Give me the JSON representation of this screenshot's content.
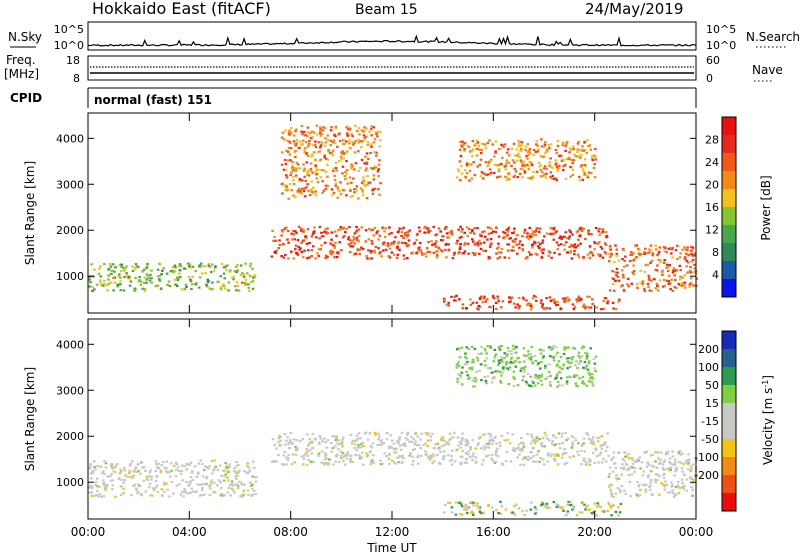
{
  "header": {
    "site": "Hokkaido East (fitACF)",
    "beam": "Beam 15",
    "date": "24/May/2019"
  },
  "top_panels": {
    "nsky_label": "N.Sky",
    "nsky_ticks": [
      "10^5",
      "10^0"
    ],
    "nsearch_label": "N.Search",
    "nsearch_ticks": [
      "10^5",
      "10^0"
    ],
    "freq_label_1": "Freq.",
    "freq_label_2": "[MHz]",
    "freq_ticks": [
      "18",
      "8"
    ],
    "nave_label": "Nave",
    "nave_ticks": [
      "60",
      "0"
    ],
    "cpid_label": "CPID",
    "cpid_value": "normal (fast) 151"
  },
  "colors": {
    "power_scale": [
      "#0a16e8",
      "#1a5aa8",
      "#2e8a5a",
      "#49a64a",
      "#86c52e",
      "#f0c21c",
      "#f28a18",
      "#f0581c",
      "#e62a1e",
      "#e8100e"
    ],
    "velocity_scale": [
      "#e80c0c",
      "#f05014",
      "#f38a16",
      "#f2c416",
      "#c8c8c4",
      "#c8c8c4",
      "#7ed040",
      "#2e9a52",
      "#255f8e",
      "#1a28b8"
    ]
  },
  "chart_data": [
    {
      "type": "heatmap",
      "name": "power",
      "ylabel": "Slant Range [km]",
      "yticks": [
        "1000",
        "2000",
        "3000",
        "4000"
      ],
      "ylim": [
        200,
        4550
      ],
      "xlim": [
        0,
        24
      ],
      "colorbar_label": "Power [dB]",
      "colorbar_ticks": [
        "4",
        "8",
        "12",
        "16",
        "20",
        "24",
        "28"
      ],
      "colorbar_range": [
        0,
        32
      ],
      "bands": [
        {
          "t0": 0.0,
          "t1": 6.6,
          "r0": 700,
          "r1": 1300,
          "level": 14
        },
        {
          "t0": 7.2,
          "t1": 20.5,
          "r0": 1400,
          "r1": 2100,
          "level": 26
        },
        {
          "t0": 20.5,
          "t1": 24.0,
          "r0": 700,
          "r1": 1700,
          "level": 24
        },
        {
          "t0": 7.6,
          "t1": 11.5,
          "r0": 2700,
          "r1": 4300,
          "level": 22
        },
        {
          "t0": 14.5,
          "t1": 20.0,
          "r0": 3100,
          "r1": 4000,
          "level": 22
        },
        {
          "t0": 14.0,
          "t1": 21.0,
          "r0": 300,
          "r1": 600,
          "level": 26
        }
      ]
    },
    {
      "type": "heatmap",
      "name": "velocity",
      "ylabel": "Slant Range [km]",
      "xlabel": "Time UT",
      "xticks": [
        "00:00",
        "04:00",
        "08:00",
        "12:00",
        "16:00",
        "20:00",
        "00:00"
      ],
      "yticks": [
        "1000",
        "2000",
        "3000",
        "4000"
      ],
      "ylim": [
        200,
        4550
      ],
      "xlim": [
        0,
        24
      ],
      "colorbar_label": "Velocity [m s^-1]",
      "colorbar_ticks": [
        "200",
        "100",
        "50",
        "15",
        "-15",
        "-50",
        "-100",
        "-200"
      ],
      "bands": [
        {
          "t0": 0.0,
          "t1": 6.6,
          "r0": 700,
          "r1": 1500,
          "level": 0
        },
        {
          "t0": 7.2,
          "t1": 20.5,
          "r0": 1400,
          "r1": 2100,
          "level": 0
        },
        {
          "t0": 20.5,
          "t1": 24.0,
          "r0": 700,
          "r1": 1700,
          "level": 0
        },
        {
          "t0": 14.5,
          "t1": 20.0,
          "r0": 3100,
          "r1": 4000,
          "level": 40
        },
        {
          "t0": 14.0,
          "t1": 21.0,
          "r0": 300,
          "r1": 600,
          "level": 60
        }
      ]
    }
  ]
}
